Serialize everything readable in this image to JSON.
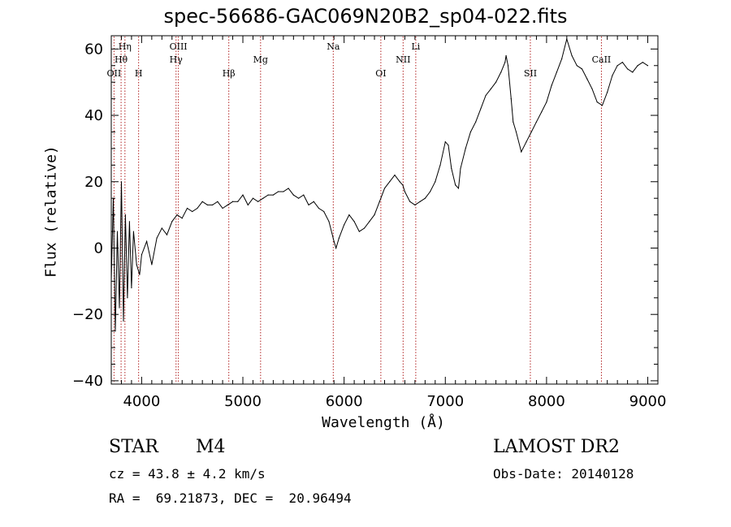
{
  "chart_data": {
    "type": "line",
    "title": "spec-56686-GAC069N20B2_sp04-022.fits",
    "xlabel": "Wavelength (Å)",
    "ylabel": "Flux (relative)",
    "xlim": [
      3700,
      9100
    ],
    "ylim": [
      -41,
      64
    ],
    "xticks": [
      4000,
      5000,
      6000,
      7000,
      8000,
      9000
    ],
    "yticks": [
      -40,
      -20,
      0,
      20,
      40,
      60
    ],
    "series": [
      {
        "x": [
          3700,
          3720,
          3740,
          3760,
          3780,
          3800,
          3820,
          3840,
          3860,
          3880,
          3900,
          3920,
          3950,
          3980,
          4000,
          4050,
          4100,
          4150,
          4200,
          4250,
          4300,
          4350,
          4400,
          4450,
          4500,
          4550,
          4600,
          4650,
          4700,
          4750,
          4800,
          4850,
          4900,
          4950,
          5000,
          5050,
          5100,
          5150,
          5200,
          5250,
          5300,
          5350,
          5400,
          5450,
          5500,
          5550,
          5600,
          5650,
          5700,
          5750,
          5800,
          5850,
          5900,
          5920,
          5950,
          6000,
          6050,
          6100,
          6150,
          6200,
          6250,
          6300,
          6350,
          6400,
          6450,
          6500,
          6550,
          6580,
          6600,
          6650,
          6700,
          6750,
          6800,
          6850,
          6900,
          6950,
          7000,
          7030,
          7060,
          7100,
          7130,
          7150,
          7200,
          7250,
          7300,
          7350,
          7400,
          7450,
          7500,
          7550,
          7590,
          7600,
          7620,
          7650,
          7670,
          7700,
          7750,
          7800,
          7850,
          7900,
          7950,
          8000,
          8050,
          8100,
          8150,
          8200,
          8250,
          8300,
          8350,
          8400,
          8450,
          8500,
          8550,
          8600,
          8650,
          8700,
          8750,
          8800,
          8850,
          8900,
          8950,
          9000
        ],
        "y": [
          -10,
          15,
          -25,
          5,
          -18,
          20,
          -22,
          10,
          -15,
          8,
          -12,
          5,
          -5,
          -8,
          -2,
          2,
          -5,
          3,
          6,
          4,
          8,
          10,
          9,
          12,
          11,
          12,
          14,
          13,
          13,
          14,
          12,
          13,
          14,
          14,
          16,
          13,
          15,
          14,
          15,
          16,
          16,
          17,
          17,
          18,
          16,
          15,
          16,
          13,
          14,
          12,
          11,
          8,
          2,
          0,
          3,
          7,
          10,
          8,
          5,
          6,
          8,
          10,
          14,
          18,
          20,
          22,
          20,
          19,
          17,
          14,
          13,
          14,
          15,
          17,
          20,
          25,
          32,
          31,
          24,
          19,
          18,
          24,
          30,
          35,
          38,
          42,
          46,
          48,
          50,
          53,
          56,
          58,
          55,
          45,
          38,
          35,
          29,
          32,
          35,
          38,
          41,
          44,
          49,
          53,
          57,
          63,
          58,
          55,
          54,
          51,
          48,
          44,
          43,
          47,
          52,
          55,
          56,
          54,
          53,
          55,
          56,
          55
        ]
      }
    ],
    "lines": [
      {
        "label": "OII",
        "x": 3727,
        "row": 3
      },
      {
        "label": "Hη",
        "x": 3835,
        "row": 1
      },
      {
        "label": "Hθ",
        "x": 3797,
        "row": 2
      },
      {
        "label": "H",
        "x": 3970,
        "row": 3
      },
      {
        "label": "OIII",
        "x": 4363,
        "row": 1
      },
      {
        "label": "Hγ",
        "x": 4340,
        "row": 2
      },
      {
        "label": "Hβ",
        "x": 4861,
        "row": 3
      },
      {
        "label": "Mg",
        "x": 5175,
        "row": 2
      },
      {
        "label": "Na",
        "x": 5893,
        "row": 1
      },
      {
        "label": "OI",
        "x": 6363,
        "row": 3
      },
      {
        "label": "NII",
        "x": 6583,
        "row": 2
      },
      {
        "label": "Li",
        "x": 6708,
        "row": 1
      },
      {
        "label": "SII",
        "x": 7840,
        "row": 3
      },
      {
        "label": "CaII",
        "x": 8542,
        "row": 2
      }
    ]
  },
  "info": {
    "object_class": "STAR",
    "subclass": "M4",
    "survey": "LAMOST DR2",
    "cz": "cz = 43.8 ± 4.2 km/s",
    "obs_date": "Obs-Date: 20140128",
    "radec": "RA =  69.21873, DEC =  20.96494"
  }
}
